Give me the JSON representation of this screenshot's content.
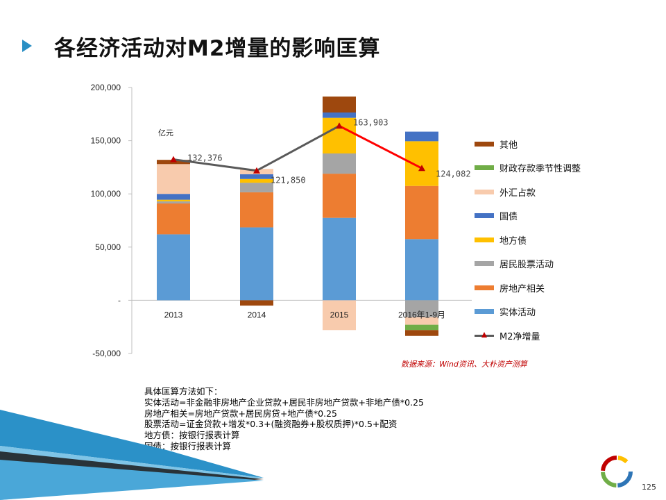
{
  "title": "各经济活动对M2增量的影响匡算",
  "unit_label": "亿元",
  "source": "数据来源：Wind资讯、大朴资产测算",
  "notes": [
    "具体匡算方法如下：",
    "实体活动=非金融非房地产企业贷款+居民非房地产贷款+非地产债*0.25",
    "房地产相关=房地产贷款+居民房贷+地产债*0.25",
    "股票活动=证金贷款+增发*0.3+(融资融券+股权质押)*0.5+配资",
    "地方债：按银行报表计算",
    "国债：按银行报表计算"
  ],
  "page_number": "125",
  "chart_data": {
    "type": "bar",
    "stacked": true,
    "categories": [
      "2013",
      "2014",
      "2015",
      "2016年1-9月"
    ],
    "ylim": [
      -50000,
      200000
    ],
    "y_ticks": [
      {
        "value": 200000,
        "label": "200,000"
      },
      {
        "value": 150000,
        "label": "150,000"
      },
      {
        "value": 100000,
        "label": "100,000"
      },
      {
        "value": 50000,
        "label": "50,000"
      },
      {
        "value": 0,
        "label": "-"
      },
      {
        "value": -50000,
        "label": "-50,000"
      }
    ],
    "series": [
      {
        "name": "实体活动",
        "color": "#5b9bd5",
        "values": [
          62000,
          68500,
          77500,
          57500
        ]
      },
      {
        "name": "房地产相关",
        "color": "#ed7d31",
        "values": [
          29000,
          33000,
          41500,
          50000
        ]
      },
      {
        "name": "居民股票活动",
        "color": "#a5a5a5",
        "values": [
          2000,
          9000,
          19000,
          -16000
        ]
      },
      {
        "name": "地方债",
        "color": "#ffc000",
        "values": [
          1500,
          3500,
          33500,
          42000
        ]
      },
      {
        "name": "国债",
        "color": "#4472c4",
        "values": [
          5500,
          4500,
          5000,
          9000
        ]
      },
      {
        "name": "外汇占款",
        "color": "#f8cbad",
        "values": [
          28000,
          5000,
          -28000,
          -7000
        ]
      },
      {
        "name": "财政存款季节性调整",
        "color": "#70ad47",
        "values": [
          0,
          0,
          0,
          -5000
        ]
      },
      {
        "name": "其他",
        "color": "#9e480e",
        "values": [
          4000,
          -5000,
          15000,
          -5500
        ]
      }
    ],
    "line": {
      "name": "M2净增量",
      "color": "#595959",
      "highlight_color": "#ff0000",
      "marker_color": "#c00000",
      "values": [
        132376,
        121850,
        163903,
        124082
      ],
      "labels": [
        "132,376",
        "121,850",
        "163,903",
        "124,082"
      ]
    },
    "legend_order": [
      "其他",
      "财政存款季节性调整",
      "外汇占款",
      "国债",
      "地方债",
      "居民股票活动",
      "房地产相关",
      "实体活动",
      "M2净增量"
    ],
    "legend_position": "right",
    "grid": false
  }
}
